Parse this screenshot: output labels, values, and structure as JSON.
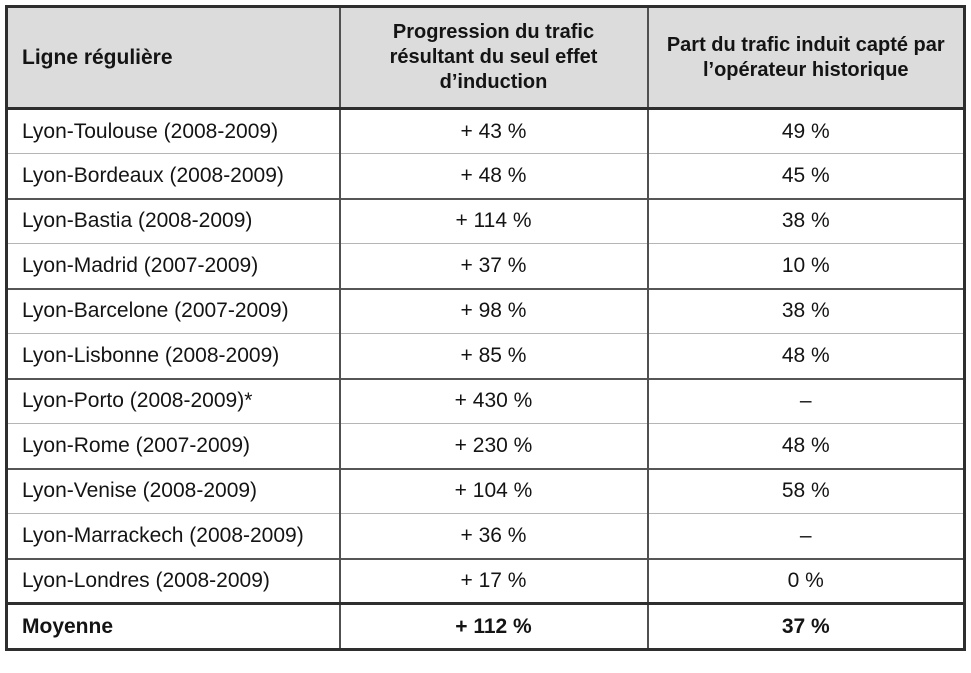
{
  "table": {
    "header": {
      "col_line": "Ligne régulière",
      "col_progression": "Progression du trafic résultant du seul effet d’induction",
      "col_part": "Part du trafic induit capté par l’opérateur historique"
    },
    "rows": [
      {
        "line": "Lyon-Toulouse (2008-2009)",
        "progression": "+ 43 %",
        "part": "49 %"
      },
      {
        "line": "Lyon-Bordeaux (2008-2009)",
        "progression": "+ 48 %",
        "part": "45 %"
      },
      {
        "line": "Lyon-Bastia (2008-2009)",
        "progression": "+ 114 %",
        "part": "38 %"
      },
      {
        "line": "Lyon-Madrid (2007-2009)",
        "progression": "+ 37 %",
        "part": "10 %"
      },
      {
        "line": "Lyon-Barcelone (2007-2009)",
        "progression": "+ 98 %",
        "part": "38 %"
      },
      {
        "line": "Lyon-Lisbonne (2008-2009)",
        "progression": "+ 85 %",
        "part": "48 %"
      },
      {
        "line": "Lyon-Porto (2008-2009)*",
        "progression": "+ 430 %",
        "part": "–"
      },
      {
        "line": "Lyon-Rome (2007-2009)",
        "progression": "+ 230 %",
        "part": "48 %"
      },
      {
        "line": "Lyon-Venise (2008-2009)",
        "progression": "+ 104 %",
        "part": "58 %"
      },
      {
        "line": "Lyon-Marrackech (2008-2009)",
        "progression": "+ 36 %",
        "part": "–"
      },
      {
        "line": "Lyon-Londres (2008-2009)",
        "progression": "+ 17 %",
        "part": "0 %"
      }
    ],
    "footer": {
      "line": "Moyenne",
      "progression": "+ 112 %",
      "part": "37 %"
    }
  },
  "colors": {
    "header_background": "#dcdcdc",
    "outer_border": "#2e2e2e",
    "column_separator": "#505050",
    "row_separator_dark": "#565656",
    "row_separator_light": "#b5b5b5",
    "text": "#141414",
    "page_background": "#ffffff"
  }
}
